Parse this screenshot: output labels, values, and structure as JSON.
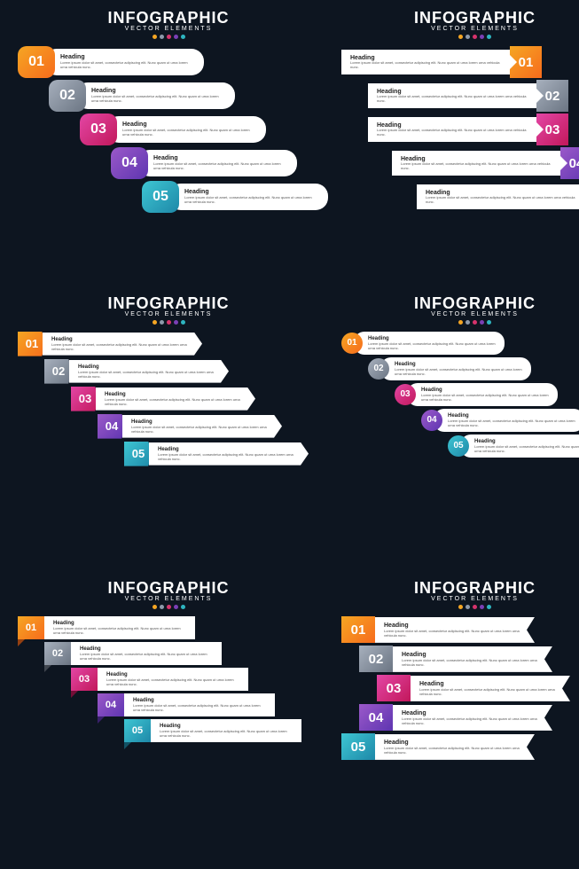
{
  "bg_color": "#0d1520",
  "title_main": "INFOGRAPHIC",
  "title_sub": "VECTOR ELEMENTS",
  "dot_colors": [
    "#f5a623",
    "#8e9aab",
    "#d6336c",
    "#7b3fb5",
    "#2eb5c0"
  ],
  "item_heading": "Heading",
  "item_text": "Lorem ipsum dolor sit amet, consectetur adipiscing elit. Nunc quam ut urna lorem urna vehicula nunc.",
  "steps": [
    {
      "num": "01",
      "color_a": "#f5a623",
      "color_b": "#f76b1c"
    },
    {
      "num": "02",
      "color_a": "#a7b0bd",
      "color_b": "#6b7583"
    },
    {
      "num": "03",
      "color_a": "#e346a5",
      "color_b": "#c2185b"
    },
    {
      "num": "04",
      "color_a": "#9b59c9",
      "color_b": "#5e35b1"
    },
    {
      "num": "05",
      "color_a": "#3ec6d3",
      "color_b": "#1e88a8"
    }
  ],
  "panel1_offsets": [
    0,
    35,
    70,
    105,
    140
  ],
  "panel2_offsets": [
    0,
    30,
    30,
    57,
    85
  ],
  "panel3_offsets": [
    0,
    30,
    60,
    90,
    120
  ],
  "panel4_offsets": [
    0,
    30,
    60,
    90,
    120
  ],
  "panel5_offsets": [
    0,
    30,
    60,
    90,
    120
  ],
  "panel6_offsets": [
    0,
    20,
    40,
    20,
    0
  ]
}
